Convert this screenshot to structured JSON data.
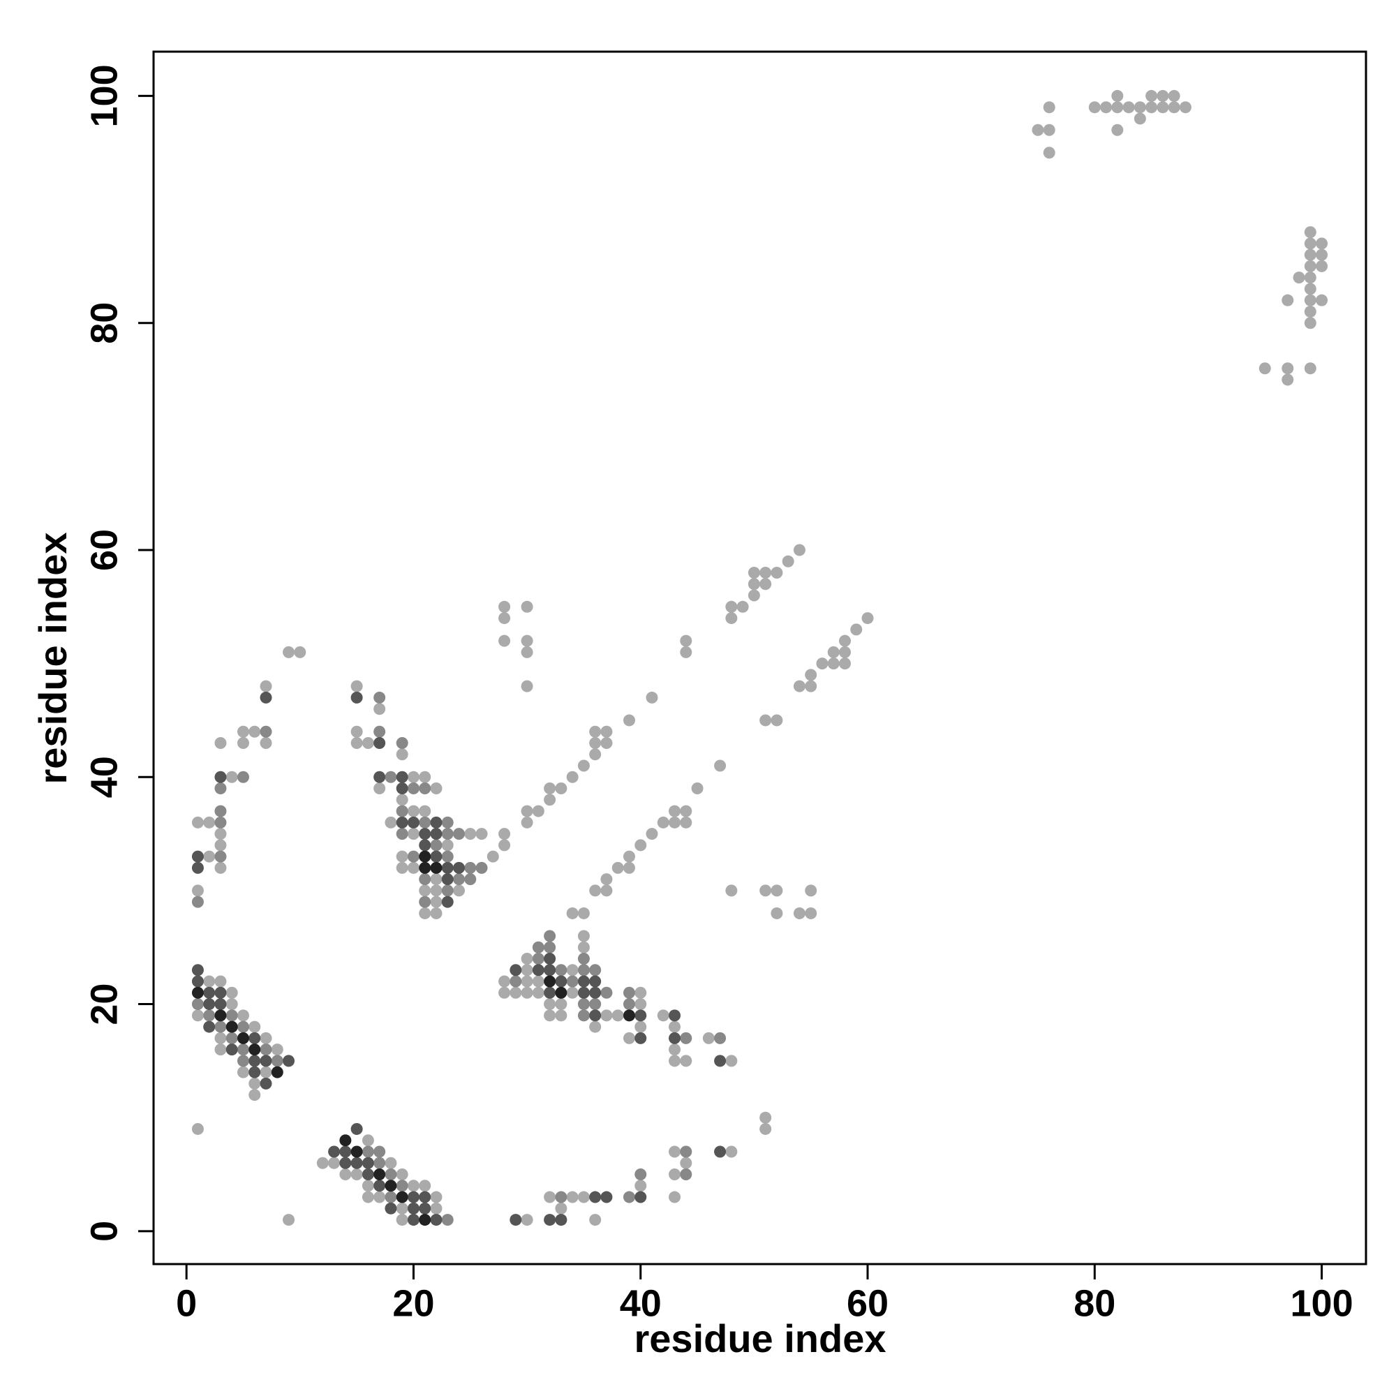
{
  "chart_data": {
    "type": "scatter",
    "xlabel": "residue index",
    "ylabel": "residue index",
    "xlim": [
      -2.9,
      103.9
    ],
    "ylim": [
      -2.9,
      103.9
    ],
    "xticks": [
      0,
      20,
      40,
      60,
      80,
      100
    ],
    "yticks": [
      0,
      20,
      40,
      60,
      80,
      100
    ],
    "series": [
      {
        "color": "#aaaaaa",
        "x": [
          75,
          76,
          76,
          76,
          80,
          81,
          82,
          82,
          82,
          83,
          84,
          84,
          85,
          85,
          86,
          86,
          87,
          87,
          88,
          99,
          99,
          100,
          99,
          100,
          99,
          100,
          98,
          99,
          99,
          97,
          99,
          100,
          99,
          99,
          95,
          97,
          97,
          99,
          40,
          41,
          42,
          43,
          43,
          44,
          44,
          45,
          47,
          54,
          55,
          55,
          56,
          57,
          57,
          58,
          58,
          58,
          59,
          60,
          51,
          52,
          48,
          51,
          52,
          52,
          54,
          55,
          55,
          27,
          28,
          28,
          30,
          30,
          31,
          32,
          32,
          33,
          34,
          35,
          36,
          36,
          36,
          37,
          37,
          39,
          41,
          44,
          44,
          48,
          48,
          49,
          50,
          50,
          50,
          51,
          51,
          52,
          53,
          54,
          28,
          28,
          28,
          30,
          30,
          30,
          30,
          36,
          37,
          37,
          38,
          39,
          39,
          34,
          35,
          9,
          10,
          7,
          5,
          6,
          5,
          7,
          3,
          4,
          1,
          2,
          3,
          3,
          2,
          3,
          1,
          15,
          17,
          15,
          15,
          16,
          19,
          20,
          21,
          17,
          22,
          19,
          18,
          20,
          21,
          20,
          25,
          26,
          23,
          19,
          19,
          20,
          22,
          21,
          22,
          24,
          22,
          21,
          22,
          35,
          35,
          30,
          30,
          34,
          28,
          30,
          31,
          28,
          29,
          30,
          31,
          34,
          40,
          32,
          33,
          40,
          32,
          33,
          37,
          38,
          42,
          36,
          40,
          43,
          39,
          46,
          43,
          43,
          44,
          48,
          2,
          3,
          4,
          4,
          1,
          5,
          6,
          3,
          7,
          3,
          8,
          5,
          7,
          6,
          6,
          1,
          16,
          12,
          13,
          18,
          14,
          15,
          19,
          16,
          20,
          21,
          16,
          17,
          22,
          19,
          22,
          19,
          9,
          30,
          32,
          33,
          34,
          35,
          36,
          40,
          43,
          44,
          43,
          43,
          48,
          51,
          51
        ],
        "values": [
          97,
          97,
          99,
          95,
          99,
          99,
          99,
          100,
          97,
          99,
          99,
          98,
          100,
          99,
          100,
          99,
          100,
          99,
          99,
          88,
          87,
          87,
          86,
          86,
          85,
          85,
          84,
          84,
          83,
          82,
          82,
          82,
          81,
          80,
          76,
          76,
          75,
          76,
          34,
          35,
          36,
          36,
          37,
          36,
          37,
          39,
          41,
          48,
          48,
          49,
          50,
          50,
          51,
          50,
          51,
          52,
          53,
          54,
          45,
          45,
          30,
          30,
          30,
          28,
          28,
          28,
          30,
          33,
          34,
          35,
          36,
          37,
          37,
          38,
          39,
          39,
          40,
          41,
          42,
          43,
          44,
          43,
          44,
          45,
          47,
          51,
          52,
          54,
          55,
          55,
          56,
          57,
          58,
          57,
          58,
          58,
          59,
          60,
          55,
          54,
          52,
          55,
          52,
          51,
          48,
          30,
          30,
          31,
          32,
          32,
          33,
          28,
          28,
          51,
          51,
          48,
          44,
          44,
          43,
          43,
          43,
          40,
          36,
          36,
          35,
          34,
          33,
          32,
          30,
          48,
          46,
          44,
          43,
          43,
          42,
          40,
          40,
          39,
          39,
          38,
          36,
          37,
          37,
          35,
          35,
          35,
          34,
          33,
          32,
          32,
          31,
          30,
          30,
          30,
          29,
          28,
          28,
          26,
          25,
          24,
          23,
          23,
          22,
          22,
          22,
          21,
          21,
          21,
          21,
          21,
          21,
          20,
          20,
          20,
          19,
          19,
          19,
          19,
          19,
          18,
          18,
          18,
          17,
          17,
          16,
          15,
          15,
          15,
          22,
          22,
          21,
          20,
          19,
          19,
          18,
          17,
          17,
          16,
          16,
          14,
          14,
          13,
          12,
          9,
          8,
          6,
          6,
          6,
          5,
          5,
          5,
          4,
          4,
          4,
          3,
          3,
          3,
          2,
          2,
          1,
          1,
          1,
          3,
          2,
          3,
          3,
          1,
          4,
          7,
          6,
          5,
          3,
          7,
          10,
          9
        ]
      },
      {
        "color": "#888888",
        "x": [
          7,
          5,
          3,
          3,
          3,
          3,
          1,
          17,
          17,
          19,
          18,
          20,
          21,
          21,
          23,
          19,
          19,
          23,
          24,
          20,
          23,
          25,
          26,
          21,
          24,
          25,
          23,
          21,
          32,
          31,
          32,
          31,
          35,
          33,
          35,
          36,
          29,
          34,
          37,
          39,
          35,
          36,
          39,
          35,
          44,
          47,
          1,
          2,
          4,
          3,
          5,
          4,
          5,
          7,
          5,
          8,
          16,
          17,
          17,
          18,
          19,
          18,
          23,
          33,
          39,
          40,
          44,
          44,
          22
        ],
        "values": [
          44,
          40,
          39,
          37,
          36,
          33,
          29,
          47,
          44,
          43,
          40,
          39,
          39,
          36,
          36,
          37,
          35,
          35,
          35,
          33,
          33,
          32,
          32,
          31,
          31,
          31,
          30,
          29,
          26,
          25,
          25,
          24,
          24,
          23,
          23,
          23,
          22,
          22,
          21,
          21,
          20,
          20,
          20,
          19,
          17,
          17,
          20,
          19,
          19,
          18,
          18,
          17,
          16,
          16,
          15,
          15,
          7,
          7,
          6,
          5,
          4,
          3,
          1,
          3,
          3,
          5,
          7,
          5,
          34
        ]
      },
      {
        "color": "#555555",
        "x": [
          7,
          3,
          1,
          1,
          15,
          17,
          17,
          19,
          19,
          19,
          20,
          22,
          21,
          22,
          21,
          22,
          23,
          24,
          23,
          23,
          32,
          29,
          31,
          32,
          33,
          35,
          36,
          32,
          35,
          36,
          36,
          40,
          43,
          40,
          43,
          47,
          1,
          1,
          2,
          3,
          2,
          3,
          2,
          6,
          4,
          6,
          7,
          9,
          6,
          7,
          15,
          13,
          14,
          14,
          15,
          16,
          16,
          17,
          20,
          21,
          18,
          20,
          21,
          20,
          22,
          29,
          32,
          33,
          36,
          37,
          40,
          47
        ],
        "values": [
          47,
          40,
          33,
          32,
          47,
          43,
          40,
          40,
          39,
          36,
          36,
          36,
          35,
          35,
          34,
          33,
          32,
          32,
          31,
          29,
          24,
          23,
          23,
          23,
          22,
          22,
          22,
          21,
          21,
          21,
          19,
          19,
          19,
          17,
          17,
          15,
          23,
          22,
          21,
          21,
          20,
          20,
          18,
          17,
          16,
          15,
          15,
          15,
          14,
          13,
          9,
          7,
          7,
          6,
          6,
          6,
          5,
          4,
          3,
          3,
          2,
          2,
          2,
          1,
          1,
          1,
          1,
          1,
          3,
          3,
          3,
          7
        ]
      },
      {
        "color": "#222222",
        "x": [
          21,
          21,
          22,
          32,
          33,
          39,
          1,
          3,
          4,
          5,
          6,
          8,
          14,
          15,
          17,
          18,
          19,
          21
        ],
        "values": [
          33,
          32,
          32,
          22,
          21,
          19,
          21,
          19,
          18,
          17,
          16,
          14,
          8,
          7,
          5,
          4,
          3,
          1
        ]
      }
    ]
  }
}
